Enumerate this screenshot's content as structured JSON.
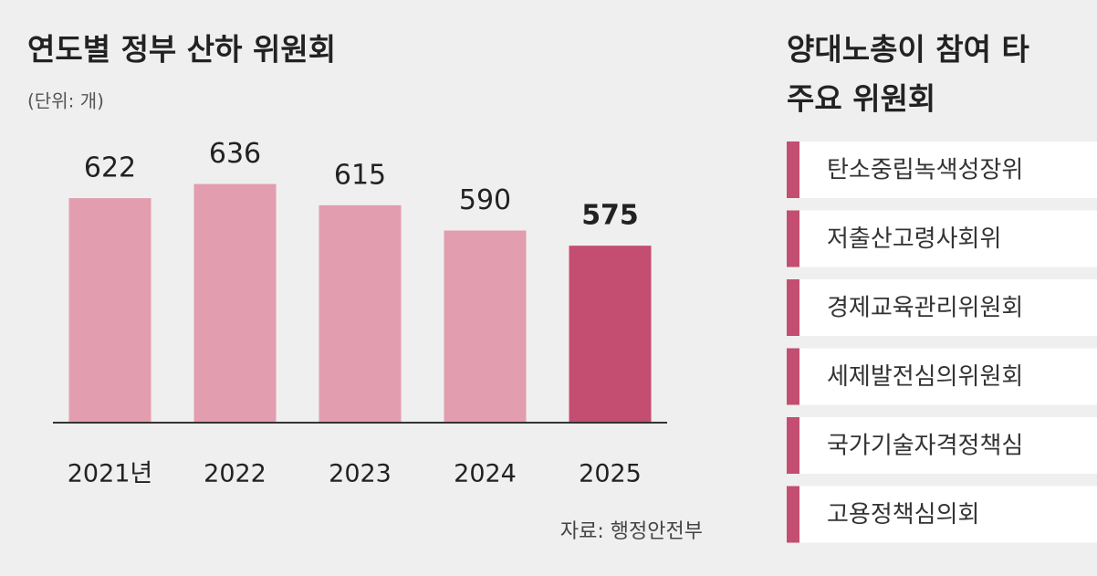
{
  "chart_data": {
    "type": "bar",
    "title": "연도별 정부 산하 위원회",
    "unit": "(단위: 개)",
    "categories": [
      "2021년",
      "2022",
      "2023",
      "2024",
      "2025"
    ],
    "values": [
      622,
      636,
      615,
      590,
      575
    ],
    "colors": [
      "#e29dae",
      "#e29dae",
      "#e29dae",
      "#e29dae",
      "#c44d72"
    ],
    "ylim": [
      400,
      660
    ],
    "source": "자료: 행정안전부"
  },
  "panel": {
    "title": [
      "양대노총이 참여 타",
      "주요 위원회"
    ],
    "items": [
      "탄소중립녹색성장위",
      "저출산고령사회위",
      "경제교육관리위원회",
      "세제발전심의위원회",
      "국가기술자격정책심",
      "고용정책심의회"
    ],
    "color": "#c44d72"
  }
}
